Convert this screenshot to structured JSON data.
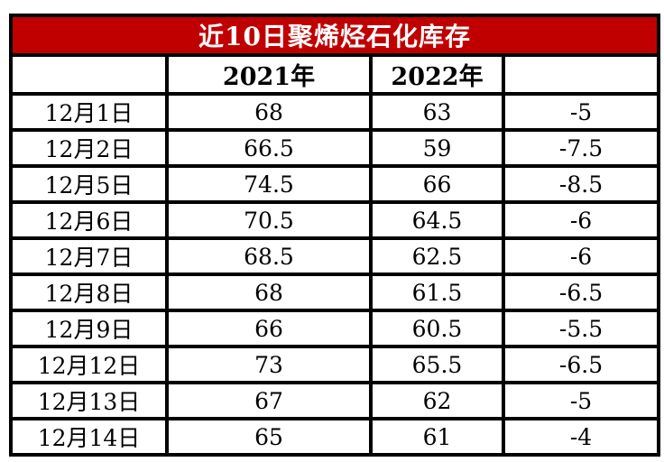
{
  "colors": {
    "title_bg": "#C00000",
    "title_text": "#FFFFFF",
    "border": "#000000",
    "cell_bg": "#FFFFFF",
    "cell_text": "#000000"
  },
  "chart_data": {
    "type": "table",
    "title": "近10日聚烯烃石化库存",
    "columns": [
      "",
      "2021年",
      "2022年",
      ""
    ],
    "rows": [
      [
        "12月1日",
        "68",
        "63",
        "-5"
      ],
      [
        "12月2日",
        "66.5",
        "59",
        "-7.5"
      ],
      [
        "12月5日",
        "74.5",
        "66",
        "-8.5"
      ],
      [
        "12月6日",
        "70.5",
        "64.5",
        "-6"
      ],
      [
        "12月7日",
        "68.5",
        "62.5",
        "-6"
      ],
      [
        "12月8日",
        "68",
        "61.5",
        "-6.5"
      ],
      [
        "12月9日",
        "66",
        "60.5",
        "-5.5"
      ],
      [
        "12月12日",
        "73",
        "65.5",
        "-6.5"
      ],
      [
        "12月13日",
        "67",
        "62",
        "-5"
      ],
      [
        "12月14日",
        "65",
        "61",
        "-4"
      ]
    ]
  }
}
